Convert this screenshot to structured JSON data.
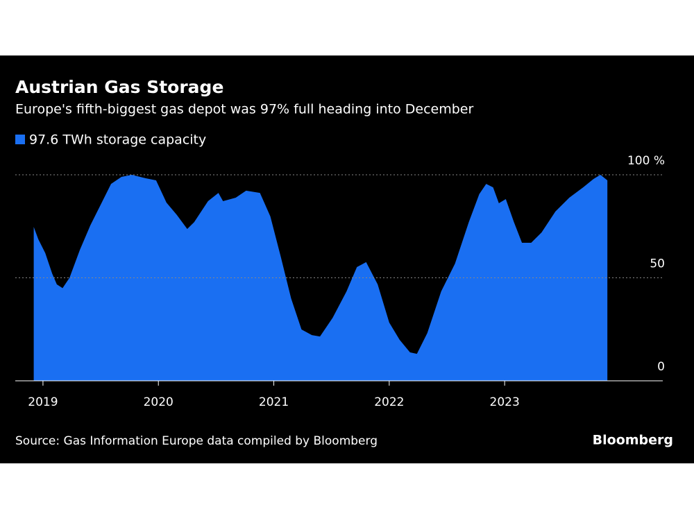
{
  "chart_data": {
    "type": "area",
    "title": "Austrian Gas Storage",
    "subtitle": "Europe's fifth-biggest gas depot was 97% full heading into December",
    "source": "Source: Gas Information Europe data compiled by Bloomberg",
    "credit": "Bloomberg",
    "x": [
      2018.92,
      2018.96,
      2019.02,
      2019.08,
      2019.12,
      2019.17,
      2019.23,
      2019.32,
      2019.41,
      2019.5,
      2019.59,
      2019.68,
      2019.77,
      2019.89,
      2019.98,
      2020.07,
      2020.16,
      2020.25,
      2020.31,
      2020.43,
      2020.52,
      2020.56,
      2020.67,
      2020.76,
      2020.88,
      2020.97,
      2021.06,
      2021.15,
      2021.24,
      2021.33,
      2021.4,
      2021.51,
      2021.63,
      2021.72,
      2021.8,
      2021.9,
      2022.0,
      2022.09,
      2022.18,
      2022.24,
      2022.33,
      2022.45,
      2022.57,
      2022.69,
      2022.78,
      2022.84,
      2022.9,
      2022.95,
      2023.01,
      2023.08,
      2023.15,
      2023.23,
      2023.32,
      2023.44,
      2023.56,
      2023.68,
      2023.77,
      2023.83,
      2023.89
    ],
    "series": [
      {
        "name": "97.6 TWh storage capacity",
        "color": "#1a6ff2",
        "values": [
          74.7,
          68.7,
          62,
          52,
          46.8,
          45,
          50,
          63.6,
          75.4,
          85.5,
          95.6,
          99,
          100,
          98.3,
          97.3,
          86.5,
          80.5,
          73.7,
          77,
          87.2,
          91.2,
          87.2,
          88.9,
          92.3,
          91.2,
          79.8,
          60.3,
          40,
          24.9,
          22.2,
          21.5,
          30.6,
          43.4,
          55.2,
          57.6,
          46.8,
          28.3,
          19.9,
          13.8,
          13.1,
          23.2,
          43.4,
          56.9,
          77.1,
          90.6,
          95.6,
          93.9,
          86.2,
          88.2,
          77.1,
          67,
          67,
          72,
          82.2,
          88.9,
          93.9,
          98,
          100,
          97.3
        ]
      }
    ],
    "xlim": [
      2018.76,
      2024.37
    ],
    "xticks": [
      2019,
      2020,
      2021,
      2022,
      2023
    ],
    "ylim": [
      0,
      100
    ],
    "yticks": [
      0,
      50,
      {
        "value": 100,
        "label": "100 %"
      }
    ],
    "grid": true
  }
}
